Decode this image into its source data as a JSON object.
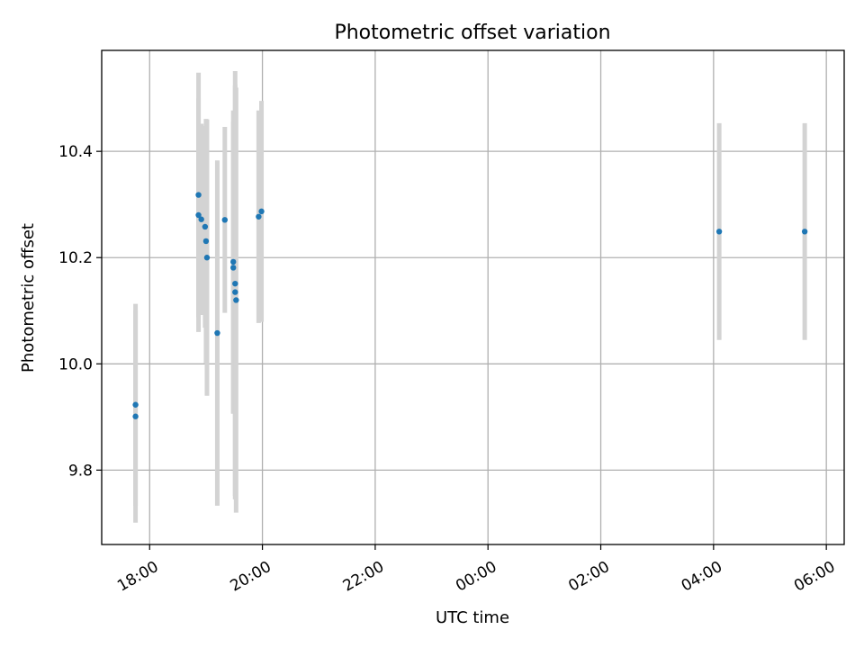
{
  "chart_data": {
    "type": "scatter",
    "title": "Photometric offset variation",
    "xlabel": "UTC time",
    "ylabel": "Photometric offset",
    "x_axis": "time",
    "xlim": [
      "17:09",
      "06:19"
    ],
    "ylim": [
      9.66,
      10.59
    ],
    "xticks": [
      {
        "time": "18:00",
        "label": "18:00"
      },
      {
        "time": "20:00",
        "label": "20:00"
      },
      {
        "time": "22:00",
        "label": "22:00"
      },
      {
        "time": "00:00",
        "label": "00:00"
      },
      {
        "time": "02:00",
        "label": "02:00"
      },
      {
        "time": "04:00",
        "label": "04:00"
      },
      {
        "time": "06:00",
        "label": "06:00"
      }
    ],
    "yticks": [
      9.8,
      10.0,
      10.2,
      10.4
    ],
    "grid": true,
    "colors": {
      "points": "#1f77b4",
      "error_bars": "#d3d3d3",
      "grid": "#b0b0b0"
    },
    "points": [
      {
        "time": "17:45",
        "y": 9.923,
        "err": 0.19
      },
      {
        "time": "17:45",
        "y": 9.901,
        "err": 0.2
      },
      {
        "time": "18:52",
        "y": 10.318,
        "err": 0.23
      },
      {
        "time": "18:52",
        "y": 10.28,
        "err": 0.22
      },
      {
        "time": "18:55",
        "y": 10.272,
        "err": 0.18
      },
      {
        "time": "18:59",
        "y": 10.258,
        "err": 0.19
      },
      {
        "time": "19:00",
        "y": 10.231,
        "err": 0.23
      },
      {
        "time": "19:01",
        "y": 10.2,
        "err": 0.26
      },
      {
        "time": "19:12",
        "y": 10.058,
        "err": 0.325
      },
      {
        "time": "19:20",
        "y": 10.271,
        "err": 0.175
      },
      {
        "time": "19:29",
        "y": 10.192,
        "err": 0.285
      },
      {
        "time": "19:29",
        "y": 10.181,
        "err": 0.275
      },
      {
        "time": "19:31",
        "y": 10.151,
        "err": 0.4
      },
      {
        "time": "19:31",
        "y": 10.135,
        "err": 0.39
      },
      {
        "time": "19:32",
        "y": 10.12,
        "err": 0.4
      },
      {
        "time": "19:56",
        "y": 10.277,
        "err": 0.2
      },
      {
        "time": "19:59",
        "y": 10.287,
        "err": 0.208
      },
      {
        "time": "04:06",
        "y": 10.249,
        "err": 0.204
      },
      {
        "time": "05:37",
        "y": 10.249,
        "err": 0.204
      }
    ]
  }
}
